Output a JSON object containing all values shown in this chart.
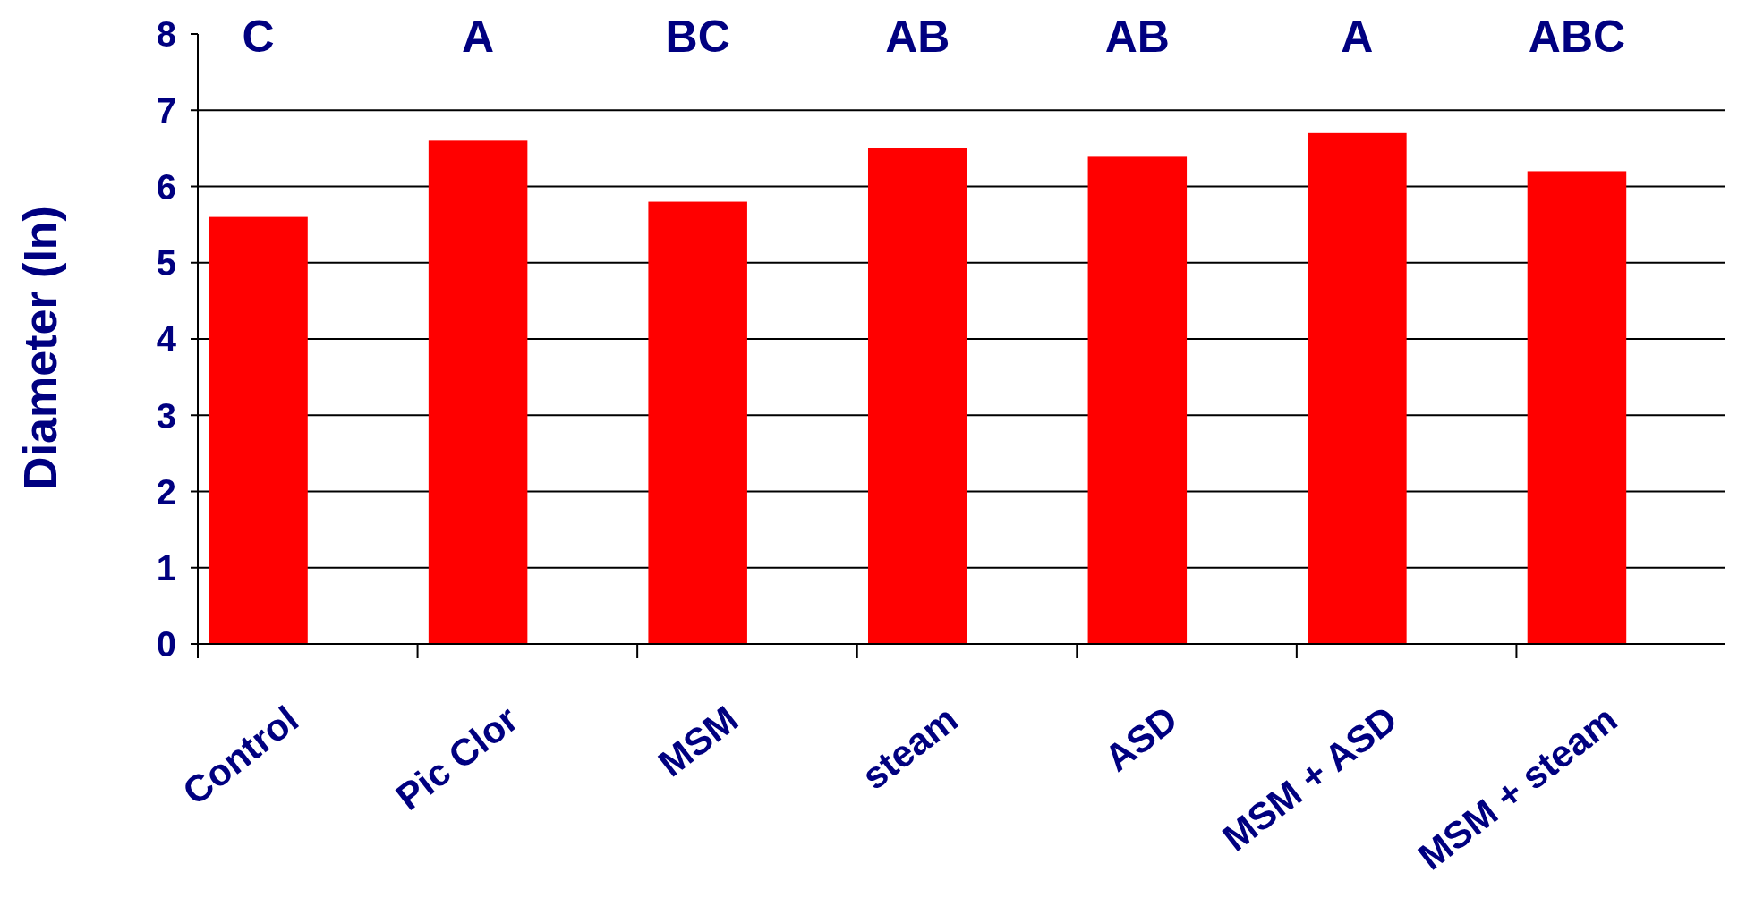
{
  "chart_data": {
    "type": "bar",
    "ylabel": "Diameter (In)",
    "categories": [
      "Control",
      "Pic Clor",
      "MSM",
      "steam",
      "ASD",
      "MSM + ASD",
      "MSM + steam"
    ],
    "values": [
      5.6,
      6.6,
      5.8,
      6.5,
      6.4,
      6.7,
      6.2
    ],
    "color": "#ff0000",
    "ylim": [
      0,
      8
    ],
    "yticks": [
      0,
      1,
      2,
      3,
      4,
      5,
      6,
      7,
      8
    ],
    "grid": "y",
    "annotations": [
      "C",
      "A",
      "BC",
      "AB",
      "AB",
      "A",
      "ABC"
    ]
  }
}
